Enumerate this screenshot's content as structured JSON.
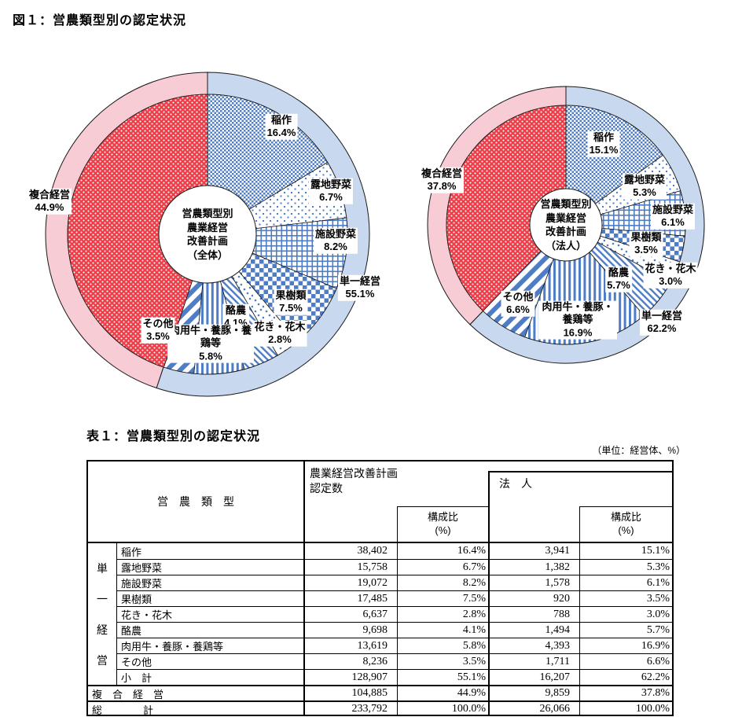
{
  "figure": {
    "title": "図１：営農類型別の認定状況"
  },
  "colors": {
    "pattern_blue": "#4e7dc5",
    "pattern_red": "#e8414b",
    "ring_blue": "#c7d8ef",
    "ring_pink": "#f8ccd4",
    "line": "#1a1a1a"
  },
  "chart_data": [
    {
      "type": "pie",
      "name": "donut-overall",
      "center_label": "営農類型別\n農業経営\n改善計画\n（全体）",
      "outer_ring": [
        {
          "label": "単一経営",
          "value": 55.1,
          "pct_label": "55.1%",
          "color": "#c7d8ef"
        },
        {
          "label": "複合経営",
          "value": 44.9,
          "pct_label": "44.9%",
          "color": "#f8ccd4"
        }
      ],
      "slices": [
        {
          "label": "稲作",
          "value": 16.4,
          "pct_label": "16.4%",
          "pattern": "checker-fine"
        },
        {
          "label": "露地野菜",
          "value": 6.7,
          "pct_label": "6.7%",
          "pattern": "dots-sparse"
        },
        {
          "label": "施設野菜",
          "value": 8.2,
          "pct_label": "8.2%",
          "pattern": "grid"
        },
        {
          "label": "果樹類",
          "value": 7.5,
          "pct_label": "7.5%",
          "pattern": "checker-large"
        },
        {
          "label": "花き・花木",
          "value": 2.8,
          "pct_label": "2.8%",
          "pattern": "confetti"
        },
        {
          "label": "酪農",
          "value": 4.1,
          "pct_label": "4.1%",
          "pattern": "stripes-thin"
        },
        {
          "label": "肉用牛・養豚・養鶏等",
          "value": 5.8,
          "pct_label": "5.8%",
          "pattern": "stripes-vert"
        },
        {
          "label": "その他",
          "value": 3.5,
          "pct_label": "3.5%",
          "pattern": "stripes-wide"
        },
        {
          "label": "複合経営",
          "value": 44.9,
          "pct_label": "44.9%",
          "pattern": "red-dots"
        }
      ]
    },
    {
      "type": "pie",
      "name": "donut-corporate",
      "center_label": "営農類型別\n農業経営\n改善計画\n（法人）",
      "outer_ring": [
        {
          "label": "単一経営",
          "value": 62.2,
          "pct_label": "62.2%",
          "color": "#c7d8ef"
        },
        {
          "label": "複合経営",
          "value": 37.8,
          "pct_label": "37.8%",
          "color": "#f8ccd4"
        }
      ],
      "slices": [
        {
          "label": "稲作",
          "value": 15.1,
          "pct_label": "15.1%",
          "pattern": "checker-fine"
        },
        {
          "label": "露地野菜",
          "value": 5.3,
          "pct_label": "5.3%",
          "pattern": "dots-sparse"
        },
        {
          "label": "施設野菜",
          "value": 6.1,
          "pct_label": "6.1%",
          "pattern": "grid"
        },
        {
          "label": "果樹類",
          "value": 3.5,
          "pct_label": "3.5%",
          "pattern": "checker-large"
        },
        {
          "label": "花き・花木",
          "value": 3.0,
          "pct_label": "3.0%",
          "pattern": "confetti"
        },
        {
          "label": "酪農",
          "value": 5.7,
          "pct_label": "5.7%",
          "pattern": "stripes-thin"
        },
        {
          "label": "肉用牛・養豚・養鶏等",
          "value": 16.9,
          "pct_label": "16.9%",
          "pattern": "stripes-vert"
        },
        {
          "label": "その他",
          "value": 6.6,
          "pct_label": "6.6%",
          "pattern": "stripes-wide"
        },
        {
          "label": "複合経営",
          "value": 37.8,
          "pct_label": "37.8%",
          "pattern": "red-dots"
        }
      ]
    }
  ],
  "table": {
    "title": "表１：営農類型別の認定状況",
    "unit_note": "（単位：経営体、%）",
    "headers": {
      "type_col": "営　農　類　型",
      "group1": "農業経営改善計画\n認定数",
      "group2": "法　人",
      "ratio": "構成比\n(%)"
    },
    "group_label_chars": [
      "単",
      "一",
      "経",
      "営"
    ],
    "rows": [
      {
        "name": "稲作",
        "num": "38,402",
        "pct": "16.4%",
        "corp_num": "3,941",
        "corp_pct": "15.1%"
      },
      {
        "name": "露地野菜",
        "num": "15,758",
        "pct": "6.7%",
        "corp_num": "1,382",
        "corp_pct": "5.3%"
      },
      {
        "name": "施設野菜",
        "num": "19,072",
        "pct": "8.2%",
        "corp_num": "1,578",
        "corp_pct": "6.1%"
      },
      {
        "name": "果樹類",
        "num": "17,485",
        "pct": "7.5%",
        "corp_num": "920",
        "corp_pct": "3.5%"
      },
      {
        "name": "花き・花木",
        "num": "6,637",
        "pct": "2.8%",
        "corp_num": "788",
        "corp_pct": "3.0%"
      },
      {
        "name": "酪農",
        "num": "9,698",
        "pct": "4.1%",
        "corp_num": "1,494",
        "corp_pct": "5.7%"
      },
      {
        "name": "肉用牛・養豚・養鶏等",
        "num": "13,619",
        "pct": "5.8%",
        "corp_num": "4,393",
        "corp_pct": "16.9%"
      },
      {
        "name": "その他",
        "num": "8,236",
        "pct": "3.5%",
        "corp_num": "1,711",
        "corp_pct": "6.6%"
      },
      {
        "name": "小　計",
        "num": "128,907",
        "pct": "55.1%",
        "corp_num": "16,207",
        "corp_pct": "62.2%"
      },
      {
        "name": "複　合　経　営",
        "num": "104,885",
        "pct": "44.9%",
        "corp_num": "9,859",
        "corp_pct": "37.8%"
      },
      {
        "name": "総　　　　計",
        "num": "233,792",
        "pct": "100.0%",
        "corp_num": "26,066",
        "corp_pct": "100.0%"
      }
    ]
  }
}
